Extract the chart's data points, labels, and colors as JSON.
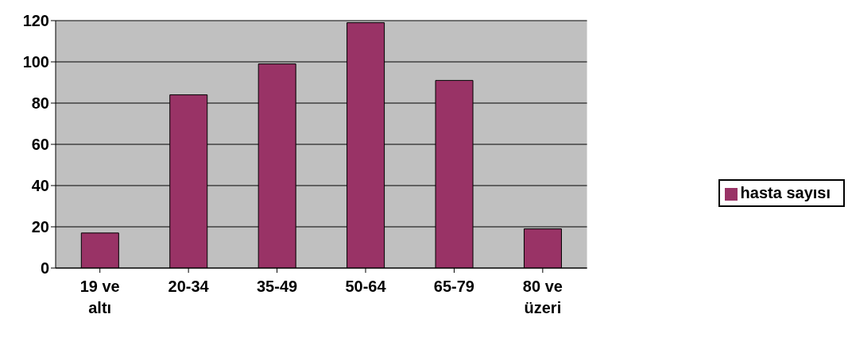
{
  "chart_data": {
    "type": "bar",
    "categories": [
      "19 ve altı",
      "20-34",
      "35-49",
      "50-64",
      "65-79",
      "80 ve üzeri"
    ],
    "series": [
      {
        "name": "hasta sayısı",
        "color": "#993366",
        "values": [
          17,
          84,
          99,
          119,
          91,
          19
        ]
      }
    ],
    "ylim": [
      0,
      120
    ],
    "yticks": [
      0,
      20,
      40,
      60,
      80,
      100,
      120
    ],
    "grid": "y",
    "legend": "right"
  }
}
